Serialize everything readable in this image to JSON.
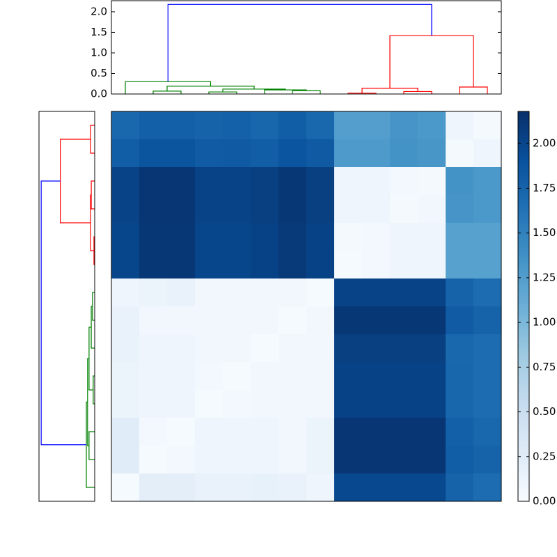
{
  "chart_data": {
    "type": "clustered-heatmap",
    "colormap": "Blues",
    "clim": [
      0,
      2.18
    ],
    "colorbar_ticks": [
      {
        "value": 0,
        "label": "0.00"
      },
      {
        "value": 0.25,
        "label": "0.25"
      },
      {
        "value": 0.5,
        "label": "0.50"
      },
      {
        "value": 0.75,
        "label": "0.75"
      },
      {
        "value": 1,
        "label": "1.00"
      },
      {
        "value": 1.25,
        "label": "1.25"
      },
      {
        "value": 1.5,
        "label": "1.50"
      },
      {
        "value": 1.75,
        "label": "1.75"
      },
      {
        "value": 2,
        "label": "2.00"
      }
    ],
    "values": [
      [
        1.72,
        1.78,
        1.78,
        1.75,
        1.77,
        1.73,
        1.8,
        1.72,
        1.25,
        1.25,
        1.33,
        1.3,
        0.1,
        0.03
      ],
      [
        1.8,
        1.87,
        1.87,
        1.82,
        1.83,
        1.8,
        1.88,
        1.83,
        1.28,
        1.28,
        1.35,
        1.32,
        0.03,
        0.1
      ],
      [
        2.02,
        2.13,
        2.13,
        2.02,
        2.02,
        2.05,
        2.12,
        2.05,
        0.1,
        0.1,
        0.05,
        0.03,
        1.35,
        1.3
      ],
      [
        2.02,
        2.13,
        2.13,
        2.02,
        2.02,
        2.05,
        2.12,
        2.05,
        0.1,
        0.1,
        0.03,
        0.06,
        1.33,
        1.3
      ],
      [
        2.0,
        2.12,
        2.12,
        2.0,
        2.0,
        2.03,
        2.1,
        2.03,
        0.03,
        0.05,
        0.1,
        0.1,
        1.22,
        1.22
      ],
      [
        2.0,
        2.12,
        2.12,
        2.0,
        2.0,
        2.03,
        2.1,
        2.03,
        0.02,
        0.05,
        0.1,
        0.1,
        1.22,
        1.22
      ],
      [
        0.1,
        0.12,
        0.15,
        0.07,
        0.07,
        0.07,
        0.07,
        0.02,
        2.02,
        2.02,
        2.02,
        2.02,
        1.75,
        1.68
      ],
      [
        0.15,
        0.07,
        0.07,
        0.07,
        0.07,
        0.07,
        0.02,
        0.07,
        2.12,
        2.12,
        2.12,
        2.12,
        1.82,
        1.75
      ],
      [
        0.15,
        0.1,
        0.1,
        0.07,
        0.07,
        0.02,
        0.07,
        0.07,
        2.05,
        2.05,
        2.05,
        2.05,
        1.72,
        1.68
      ],
      [
        0.12,
        0.1,
        0.1,
        0.05,
        0.02,
        0.07,
        0.07,
        0.07,
        2.03,
        2.03,
        2.03,
        2.03,
        1.73,
        1.68
      ],
      [
        0.12,
        0.1,
        0.1,
        0.02,
        0.05,
        0.07,
        0.07,
        0.07,
        2.03,
        2.03,
        2.03,
        2.03,
        1.73,
        1.68
      ],
      [
        0.25,
        0.05,
        0.02,
        0.1,
        0.1,
        0.1,
        0.07,
        0.12,
        2.13,
        2.13,
        2.13,
        2.13,
        1.78,
        1.72
      ],
      [
        0.25,
        0.02,
        0.05,
        0.1,
        0.1,
        0.1,
        0.07,
        0.12,
        2.13,
        2.13,
        2.13,
        2.13,
        1.8,
        1.75
      ],
      [
        0.02,
        0.22,
        0.22,
        0.15,
        0.15,
        0.17,
        0.15,
        0.1,
        1.98,
        1.98,
        1.98,
        1.98,
        1.75,
        1.68
      ]
    ],
    "top_dendrogram": {
      "leaf_lim": [
        0,
        140
      ],
      "hlim": [
        0,
        2.27
      ],
      "hticks": [
        {
          "value": 0,
          "label": "0.0"
        },
        {
          "value": 0.5,
          "label": "0.5"
        },
        {
          "value": 1,
          "label": "1.0"
        },
        {
          "value": 1.5,
          "label": "1.5"
        },
        {
          "value": 2,
          "label": "2.0"
        }
      ],
      "links": [
        {
          "leaf": [
            15,
            15,
            25,
            25
          ],
          "height": [
            0,
            0.07,
            0.07,
            0
          ],
          "color": "#008000"
        },
        {
          "leaf": [
            35,
            35,
            45,
            45
          ],
          "height": [
            0,
            0.05,
            0.05,
            0
          ],
          "color": "#008000"
        },
        {
          "leaf": [
            65,
            65,
            75,
            75
          ],
          "height": [
            0,
            0.08,
            0.08,
            0
          ],
          "color": "#008000"
        },
        {
          "leaf": [
            55,
            55,
            70,
            70
          ],
          "height": [
            0,
            0.1,
            0.1,
            0.08
          ],
          "color": "#008000"
        },
        {
          "leaf": [
            40,
            40,
            62.5,
            62.5
          ],
          "height": [
            0.05,
            0.12,
            0.12,
            0.1
          ],
          "color": "#008000"
        },
        {
          "leaf": [
            20,
            20,
            51.25,
            51.25
          ],
          "height": [
            0.07,
            0.19,
            0.19,
            0.12
          ],
          "color": "#008000"
        },
        {
          "leaf": [
            5,
            5,
            35.625,
            35.625
          ],
          "height": [
            0,
            0.3,
            0.3,
            0.19
          ],
          "color": "#008000"
        },
        {
          "leaf": [
            85,
            85,
            95,
            95
          ],
          "height": [
            0,
            0.02,
            0.02,
            0
          ],
          "color": "#ff0000"
        },
        {
          "leaf": [
            105,
            105,
            115,
            115
          ],
          "height": [
            0,
            0.06,
            0.06,
            0
          ],
          "color": "#ff0000"
        },
        {
          "leaf": [
            90,
            90,
            110,
            110
          ],
          "height": [
            0.02,
            0.14,
            0.14,
            0.06
          ],
          "color": "#ff0000"
        },
        {
          "leaf": [
            125,
            125,
            135,
            135
          ],
          "height": [
            0,
            0.17,
            0.17,
            0
          ],
          "color": "#ff0000"
        },
        {
          "leaf": [
            100,
            100,
            130,
            130
          ],
          "height": [
            0.14,
            1.42,
            1.42,
            0.17
          ],
          "color": "#ff0000"
        },
        {
          "leaf": [
            20.3125,
            20.3125,
            115,
            115
          ],
          "height": [
            0.3,
            2.18,
            2.18,
            1.42
          ],
          "color": "#0000ff"
        }
      ]
    },
    "left_dendrogram": {
      "leaf_lim": [
        0,
        140
      ],
      "hlim": [
        0,
        2.27
      ],
      "links": [
        {
          "leaf": [
            5,
            5,
            15,
            15
          ],
          "height": [
            0,
            0.17,
            0.17,
            0
          ],
          "color": "#ff0000"
        },
        {
          "leaf": [
            25,
            25,
            35,
            35
          ],
          "height": [
            0,
            0.14,
            0.14,
            0
          ],
          "color": "#ff0000"
        },
        {
          "leaf": [
            45,
            45,
            55,
            55
          ],
          "height": [
            0,
            0.03,
            0.03,
            0
          ],
          "color": "#ff0000"
        },
        {
          "leaf": [
            30,
            30,
            50,
            50
          ],
          "height": [
            0.14,
            0.17,
            0.17,
            0.03
          ],
          "color": "#ff0000"
        },
        {
          "leaf": [
            10,
            10,
            40,
            40
          ],
          "height": [
            0.17,
            1.4,
            1.4,
            0.17
          ],
          "color": "#ff0000"
        },
        {
          "leaf": [
            65,
            65,
            75,
            75
          ],
          "height": [
            0,
            0.09,
            0.09,
            0
          ],
          "color": "#008000"
        },
        {
          "leaf": [
            70,
            70,
            85,
            85
          ],
          "height": [
            0.09,
            0.14,
            0.14,
            0
          ],
          "color": "#008000"
        },
        {
          "leaf": [
            95,
            95,
            105,
            105
          ],
          "height": [
            0,
            0.06,
            0.06,
            0
          ],
          "color": "#008000"
        },
        {
          "leaf": [
            77.5,
            77.5,
            100,
            100
          ],
          "height": [
            0.14,
            0.23,
            0.23,
            0.06
          ],
          "color": "#008000"
        },
        {
          "leaf": [
            115,
            115,
            125,
            125
          ],
          "height": [
            0,
            0.23,
            0.23,
            0
          ],
          "color": "#008000"
        },
        {
          "leaf": [
            88.75,
            88.75,
            120,
            120
          ],
          "height": [
            0.23,
            0.29,
            0.29,
            0.23
          ],
          "color": "#008000"
        },
        {
          "leaf": [
            104.375,
            104.375,
            135,
            135
          ],
          "height": [
            0.29,
            0.34,
            0.34,
            0
          ],
          "color": "#008000"
        },
        {
          "leaf": [
            25,
            25,
            119.6875,
            119.6875
          ],
          "height": [
            1.4,
            2.18,
            2.18,
            0.34
          ],
          "color": "#0000ff"
        }
      ]
    }
  }
}
